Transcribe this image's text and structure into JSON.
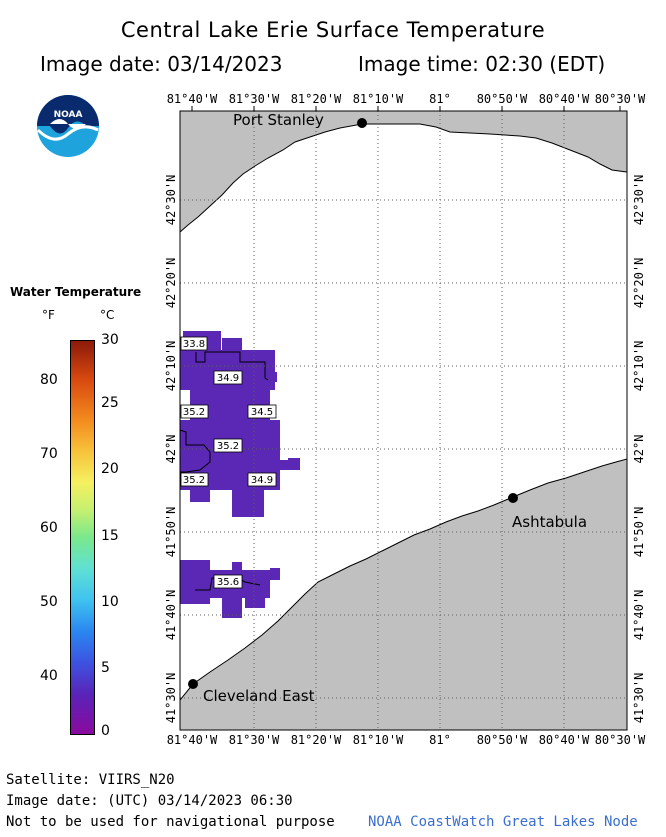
{
  "header": {
    "title": "Central Lake Erie Surface Temperature",
    "image_date": "Image date: 03/14/2023",
    "image_time": "Image time: 02:30 (EDT)"
  },
  "logo": {
    "text": "NOAA"
  },
  "legend": {
    "title": "Water Temperature",
    "unit_f": "°F",
    "unit_c": "°C",
    "ticks_f": [
      "80",
      "70",
      "60",
      "50",
      "40"
    ],
    "ticks_c": [
      "30",
      "25",
      "20",
      "15",
      "10",
      "5",
      "0"
    ]
  },
  "map": {
    "lon_labels": [
      "81°40'W",
      "81°30'W",
      "81°20'W",
      "81°10'W",
      "81°",
      "80°50'W",
      "80°40'W",
      "80°30'W"
    ],
    "lat_labels": [
      "42°30'N",
      "42°20'N",
      "42°10'N",
      "42°N",
      "41°50'N",
      "41°40'N",
      "41°30'N"
    ],
    "cities": [
      {
        "name": "Port Stanley"
      },
      {
        "name": "Ashtabula"
      },
      {
        "name": "Cleveland East"
      }
    ],
    "temp_labels": [
      "33.8",
      "34.9",
      "35.2",
      "34.5",
      "35.2",
      "35.2",
      "34.9",
      "35.6"
    ]
  },
  "footer": {
    "satellite": "Satellite: VIIRS_N20",
    "utc_date": "Image date: (UTC) 03/14/2023  06:30",
    "disclaimer": "Not to be used for navigational purpose",
    "credit": "NOAA CoastWatch Great Lakes Node"
  },
  "colors": {
    "land": "#c0c0c0",
    "water": "#ffffff",
    "sst_cell": "#5a28b4",
    "credit_text": "#3a6fd0"
  }
}
